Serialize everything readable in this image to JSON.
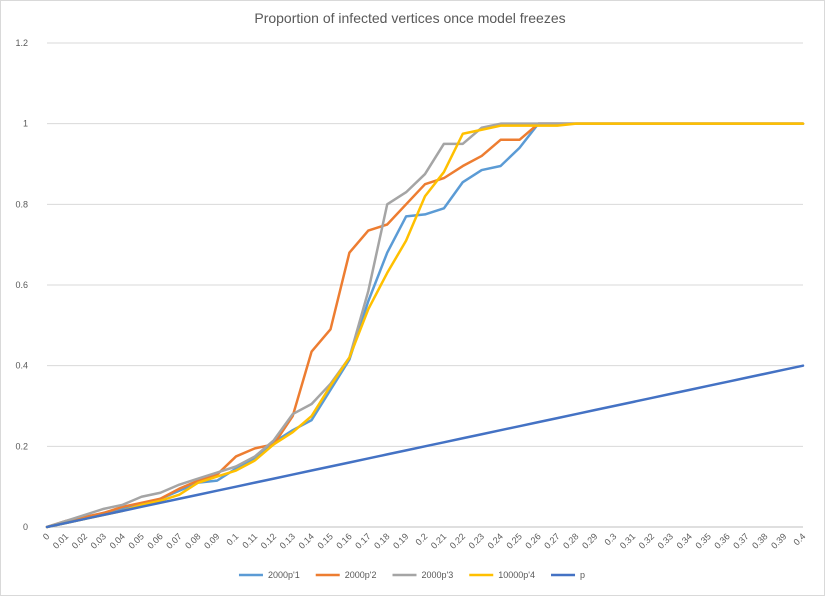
{
  "chart_data": {
    "type": "line",
    "title": "Proportion of infected vertices once model freezes",
    "xlabel": "",
    "ylabel": "",
    "ylim": [
      0,
      1.2
    ],
    "y_ticks": [
      "0",
      "0.2",
      "0.4",
      "0.6",
      "0.8",
      "1",
      "1.2"
    ],
    "categories": [
      "0",
      "0.01",
      "0.02",
      "0.03",
      "0.04",
      "0.05",
      "0.06",
      "0.07",
      "0.08",
      "0.09",
      "0.1",
      "0.11",
      "0.12",
      "0.13",
      "0.14",
      "0.15",
      "0.16",
      "0.17",
      "0.18",
      "0.19",
      "0.2",
      "0.21",
      "0.22",
      "0.23",
      "0.24",
      "0.25",
      "0.26",
      "0.27",
      "0.28",
      "0.29",
      "0.3",
      "0.31",
      "0.32",
      "0.33",
      "0.34",
      "0.35",
      "0.36",
      "0.37",
      "0.38",
      "0.39",
      "0.4"
    ],
    "grid": "horizontal",
    "legend_position": "bottom",
    "series": [
      {
        "name": "2000p'1",
        "color": "#5B9BD5",
        "values": [
          0,
          0.01,
          0.02,
          0.035,
          0.045,
          0.055,
          0.07,
          0.09,
          0.11,
          0.115,
          0.145,
          0.17,
          0.21,
          0.24,
          0.265,
          0.34,
          0.415,
          0.56,
          0.68,
          0.77,
          0.775,
          0.79,
          0.855,
          0.885,
          0.895,
          0.94,
          1.0,
          1.0,
          1.0,
          1.0,
          1.0,
          1.0,
          1.0,
          1.0,
          1.0,
          1.0,
          1.0,
          1.0,
          1.0,
          1.0,
          1.0
        ]
      },
      {
        "name": "2000p'2",
        "color": "#ED7D31",
        "values": [
          0,
          0.015,
          0.025,
          0.035,
          0.05,
          0.06,
          0.07,
          0.095,
          0.115,
          0.13,
          0.175,
          0.195,
          0.205,
          0.275,
          0.435,
          0.49,
          0.68,
          0.735,
          0.75,
          0.8,
          0.85,
          0.865,
          0.895,
          0.92,
          0.96,
          0.96,
          1.0,
          1.0,
          1.0,
          1.0,
          1.0,
          1.0,
          1.0,
          1.0,
          1.0,
          1.0,
          1.0,
          1.0,
          1.0,
          1.0,
          1.0
        ]
      },
      {
        "name": "2000p'3",
        "color": "#A5A5A5",
        "values": [
          0,
          0.015,
          0.03,
          0.045,
          0.055,
          0.075,
          0.085,
          0.105,
          0.12,
          0.135,
          0.15,
          0.175,
          0.215,
          0.28,
          0.305,
          0.355,
          0.42,
          0.585,
          0.8,
          0.83,
          0.875,
          0.95,
          0.95,
          0.99,
          1.0,
          1.0,
          1.0,
          1.0,
          1.0,
          1.0,
          1.0,
          1.0,
          1.0,
          1.0,
          1.0,
          1.0,
          1.0,
          1.0,
          1.0,
          1.0,
          1.0
        ]
      },
      {
        "name": "10000p'4",
        "color": "#FFC000",
        "values": [
          0,
          0.01,
          0.02,
          0.03,
          0.04,
          0.055,
          0.065,
          0.08,
          0.11,
          0.125,
          0.14,
          0.165,
          0.205,
          0.235,
          0.275,
          0.35,
          0.42,
          0.54,
          0.63,
          0.71,
          0.82,
          0.88,
          0.975,
          0.985,
          0.995,
          0.995,
          0.995,
          0.995,
          1.0,
          1.0,
          1.0,
          1.0,
          1.0,
          1.0,
          1.0,
          1.0,
          1.0,
          1.0,
          1.0,
          1.0,
          1.0
        ]
      },
      {
        "name": "p",
        "color": "#4472C4",
        "values": [
          0,
          0.01,
          0.02,
          0.03,
          0.04,
          0.05,
          0.06,
          0.07,
          0.08,
          0.09,
          0.1,
          0.11,
          0.12,
          0.13,
          0.14,
          0.15,
          0.16,
          0.17,
          0.18,
          0.19,
          0.2,
          0.21,
          0.22,
          0.23,
          0.24,
          0.25,
          0.26,
          0.27,
          0.28,
          0.29,
          0.3,
          0.31,
          0.32,
          0.33,
          0.34,
          0.35,
          0.36,
          0.37,
          0.38,
          0.39,
          0.4
        ]
      }
    ]
  }
}
